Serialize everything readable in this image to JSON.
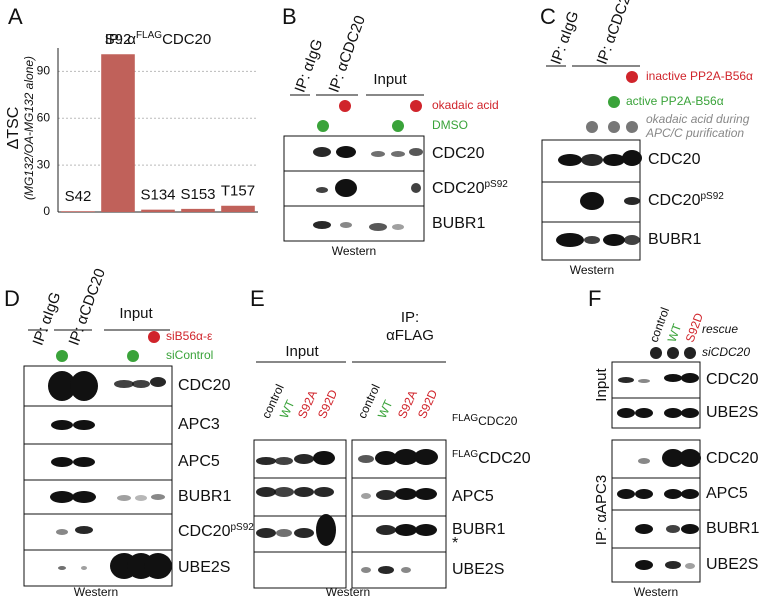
{
  "chart_data": {
    "type": "bar",
    "letter": "A",
    "title": {
      "prefix": "IP: α",
      "sup": "FLAG",
      "main": "CDC20"
    },
    "y_label": "ΔTSC",
    "y_sublabel": "(MG132/OA-MG132 alone)",
    "categories": [
      "S42",
      "S92",
      "S134",
      "S153",
      "T157"
    ],
    "values": [
      0.5,
      101,
      1.5,
      2,
      4
    ],
    "color": "#c0615a",
    "ylim": [
      0,
      105
    ],
    "yticks": [
      0,
      30,
      60,
      90
    ],
    "grid": true
  },
  "panels": {
    "B": {
      "letter": "B",
      "lanes": [
        "IP: αIgG",
        "IP: αCDC20",
        "Input"
      ],
      "treatments": [
        "okadaic acid",
        "DMSO"
      ],
      "blots": [
        {
          "name": "CDC20"
        },
        {
          "name": "CDC20",
          "sup": "pS92"
        },
        {
          "name": "BUBR1"
        }
      ],
      "footer": "Western"
    },
    "C": {
      "letter": "C",
      "lanes": [
        "IP: αIgG",
        "IP: αCDC20"
      ],
      "treatments": [
        "inactive PP2A-B56α",
        "active PP2A-B56α",
        "okadaic acid during",
        "APC/C purification"
      ],
      "blots": [
        {
          "name": "CDC20"
        },
        {
          "name": "CDC20",
          "sup": "pS92"
        },
        {
          "name": "BUBR1"
        }
      ],
      "footer": "Western"
    },
    "D": {
      "letter": "D",
      "lanes": [
        "IP: αIgG",
        "IP: αCDC20",
        "Input"
      ],
      "treatments": [
        "siB56α-ε",
        "siControl"
      ],
      "blots": [
        {
          "name": "CDC20"
        },
        {
          "name": "APC3"
        },
        {
          "name": "APC5"
        },
        {
          "name": "BUBR1"
        },
        {
          "name": "CDC20",
          "sup": "pS92"
        },
        {
          "name": "UBE2S"
        }
      ],
      "footer": "Western"
    },
    "E": {
      "letter": "E",
      "groups": [
        "Input",
        "IP:",
        "αFLAG"
      ],
      "lanes": [
        "control",
        "WT",
        "S92A",
        "S92D"
      ],
      "header": {
        "sup": "FLAG",
        "name": "CDC20"
      },
      "blots": [
        {
          "sup": "FLAG",
          "name": "CDC20"
        },
        {
          "name": "APC5"
        },
        {
          "name": "BUBR1"
        },
        {
          "name": "*"
        },
        {
          "name": "UBE2S"
        }
      ],
      "footer": "Western"
    },
    "F": {
      "letter": "F",
      "lanes": [
        "control",
        "WT",
        "S92D"
      ],
      "rescue": "rescue",
      "knockdown": "siCDC20",
      "groups": [
        "Input",
        "IP: αAPC3"
      ],
      "blots": [
        {
          "name": "CDC20"
        },
        {
          "name": "UBE2S"
        },
        {
          "name": "CDC20"
        },
        {
          "name": "APC5"
        },
        {
          "name": "BUBR1"
        },
        {
          "name": "UBE2S"
        }
      ],
      "footer": "Western"
    }
  }
}
